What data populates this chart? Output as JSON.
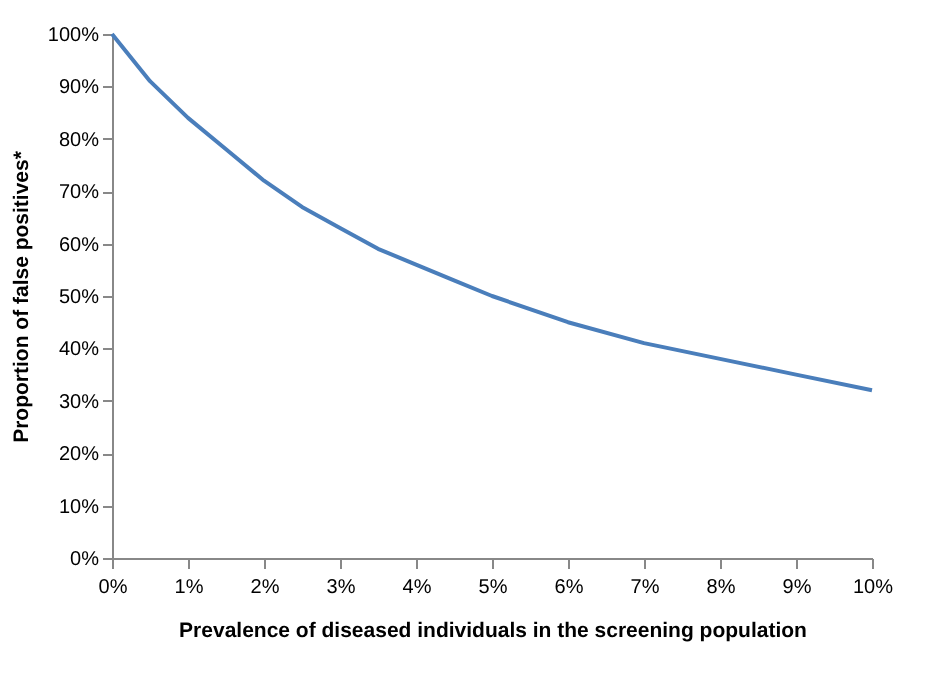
{
  "chart_data": {
    "type": "line",
    "xlabel": "Prevalence of diseased individuals in the screening population",
    "ylabel": "Proportion of false positives*",
    "x": [
      0,
      0.5,
      1,
      1.5,
      2,
      2.5,
      3,
      3.5,
      4,
      4.5,
      5,
      6,
      7,
      8,
      9,
      10
    ],
    "series": [
      {
        "color": "#4a7ebb",
        "values": [
          100,
          91,
          84,
          78,
          72,
          67,
          63,
          59,
          56,
          53,
          50,
          45,
          41,
          38,
          35,
          32
        ]
      }
    ],
    "xlim": [
      0,
      10
    ],
    "ylim": [
      0,
      100
    ],
    "xticks": [
      {
        "value": 0,
        "label": "0%"
      },
      {
        "value": 1,
        "label": "1%"
      },
      {
        "value": 2,
        "label": "2%"
      },
      {
        "value": 3,
        "label": "3%"
      },
      {
        "value": 4,
        "label": "4%"
      },
      {
        "value": 5,
        "label": "5%"
      },
      {
        "value": 6,
        "label": "6%"
      },
      {
        "value": 7,
        "label": "7%"
      },
      {
        "value": 8,
        "label": "8%"
      },
      {
        "value": 9,
        "label": "9%"
      },
      {
        "value": 10,
        "label": "10%"
      }
    ],
    "yticks": [
      {
        "value": 0,
        "label": "0%"
      },
      {
        "value": 10,
        "label": "10%"
      },
      {
        "value": 20,
        "label": "20%"
      },
      {
        "value": 30,
        "label": "30%"
      },
      {
        "value": 40,
        "label": "40%"
      },
      {
        "value": 50,
        "label": "50%"
      },
      {
        "value": 60,
        "label": "60%"
      },
      {
        "value": 70,
        "label": "70%"
      },
      {
        "value": 80,
        "label": "80%"
      },
      {
        "value": 90,
        "label": "90%"
      },
      {
        "value": 100,
        "label": "100%"
      }
    ],
    "grid": false,
    "marker": "none",
    "line_style": "solid"
  }
}
